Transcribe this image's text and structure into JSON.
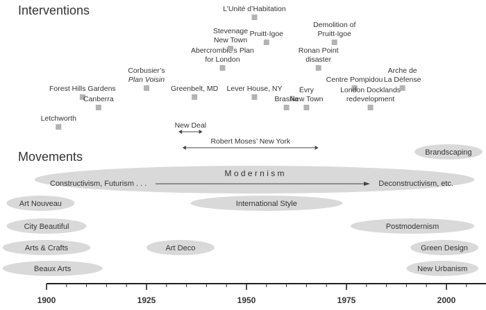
{
  "sections": {
    "interventions": "Interventions",
    "movements": "Movements"
  },
  "colors": {
    "ellipse": "#d9d9d9",
    "marker": "#b3b3b3",
    "axis": "#222222",
    "text": "#333333"
  },
  "interventions": [
    {
      "id": "forest-hills-gardens",
      "lines": [
        "Forest Hills Gardens"
      ],
      "year": 1909,
      "tier": 3
    },
    {
      "id": "letchworth",
      "lines": [
        "Letchworth"
      ],
      "year": 1903,
      "tier": 1
    },
    {
      "id": "canberra",
      "lines": [
        "Canberra"
      ],
      "year": 1913,
      "tier": 2
    },
    {
      "id": "plan-voisin",
      "lines": [
        "Corbusier’s",
        "Plan Voisin"
      ],
      "italic_line": 1,
      "year": 1925,
      "tier": 4
    },
    {
      "id": "greenbelt",
      "lines": [
        "Greenbelt, MD"
      ],
      "year": 1937,
      "tier": 3
    },
    {
      "id": "abercrombie",
      "lines": [
        "Abercrombie’s Plan",
        "for London"
      ],
      "year": 1944,
      "tier": 5
    },
    {
      "id": "stevenage",
      "lines": [
        "Stevenage",
        "New Town"
      ],
      "year": 1946,
      "tier": 6
    },
    {
      "id": "unite-habitation",
      "lines": [
        "L’Unité d’Habitation"
      ],
      "year": 1952,
      "tier": 8
    },
    {
      "id": "pruitt-igoe",
      "lines": [
        "Pruitt-Igoe"
      ],
      "year": 1955,
      "tier": 7
    },
    {
      "id": "lever-house",
      "lines": [
        "Lever House, NY"
      ],
      "year": 1952,
      "tier": 3
    },
    {
      "id": "brasilia",
      "lines": [
        "Brasilia"
      ],
      "year": 1960,
      "tier": 2
    },
    {
      "id": "evry",
      "lines": [
        "Évry",
        "New Town"
      ],
      "year": 1965,
      "tier": 2
    },
    {
      "id": "ronan-point",
      "lines": [
        "Ronan Point",
        "disaster"
      ],
      "year": 1968,
      "tier": 5
    },
    {
      "id": "pruitt-igoe-demolition",
      "lines": [
        "Demolition of",
        "Pruitt-Igoe"
      ],
      "year": 1972,
      "tier": 7
    },
    {
      "id": "centre-pompidou",
      "lines": [
        "Centre Pompidou"
      ],
      "year": 1977,
      "tier": 4
    },
    {
      "id": "london-docklands",
      "lines": [
        "London Docklands",
        "redevelopment"
      ],
      "year": 1981,
      "tier": 2
    },
    {
      "id": "arche-defense",
      "lines": [
        "Arche de",
        "La Défense"
      ],
      "year": 1989,
      "tier": 4
    }
  ],
  "spans": [
    {
      "id": "new-deal",
      "label": "New Deal",
      "start": 1933,
      "end": 1939
    },
    {
      "id": "robert-moses",
      "label": "Robert Moses’ New York",
      "start": 1934,
      "end": 1968
    }
  ],
  "movements": [
    {
      "id": "art-nouveau",
      "label": "Art Nouveau",
      "start": 1890,
      "end": 1907,
      "row": 2
    },
    {
      "id": "city-beautiful",
      "label": "City Beautiful",
      "start": 1890,
      "end": 1910,
      "row": 3
    },
    {
      "id": "arts-crafts",
      "label": "Arts & Crafts",
      "start": 1889,
      "end": 1911,
      "row": 4
    },
    {
      "id": "beaux-arts",
      "label": "Beaux Arts",
      "start": 1889,
      "end": 1914,
      "row": 5
    },
    {
      "id": "art-deco",
      "label": "Art Deco",
      "start": 1925,
      "end": 1942,
      "row": 4
    },
    {
      "id": "international-style",
      "label": "International Style",
      "start": 1936,
      "end": 1974,
      "row": 2
    },
    {
      "id": "postmodernism",
      "label": "Postmodernism",
      "start": 1976,
      "end": 2007,
      "row": 3
    },
    {
      "id": "brandscaping",
      "label": "Brandscaping",
      "start": 1992,
      "end": 2009,
      "row": 0
    },
    {
      "id": "green-design",
      "label": "Green Design",
      "start": 1991,
      "end": 2008,
      "row": 4
    },
    {
      "id": "new-urbanism",
      "label": "New Urbanism",
      "start": 1990,
      "end": 2008,
      "row": 5
    }
  ],
  "modernism": {
    "title": "M o d e r n i s m",
    "start_label": "Constructivism, Futurism . . .",
    "end_label": "Deconstructivism, etc.",
    "start": 1897,
    "end": 2007
  },
  "axis": {
    "ticks": [
      1900,
      1925,
      1950,
      1975,
      2000
    ],
    "range": [
      1900,
      2014
    ]
  }
}
